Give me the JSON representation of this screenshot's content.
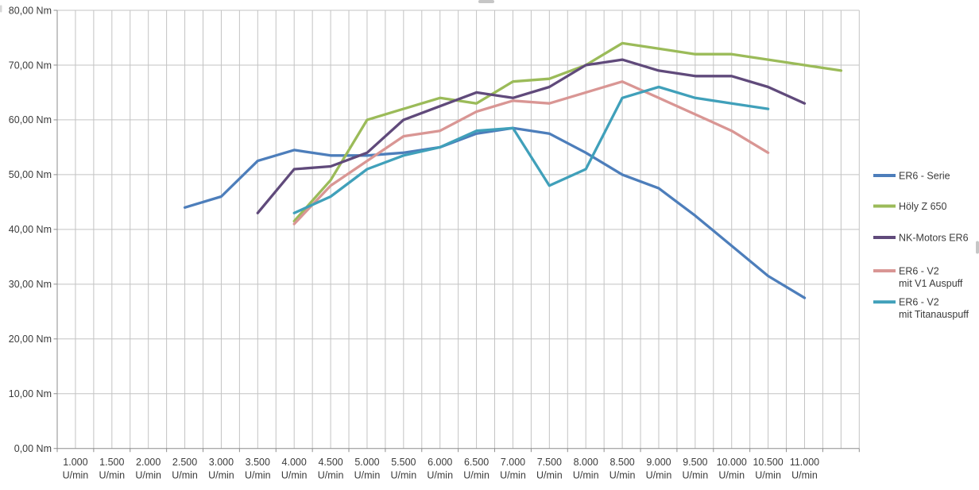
{
  "chart_data": {
    "type": "line",
    "title": "",
    "grid": true,
    "legend_position": "right",
    "x_axis": {
      "unit": "U/min",
      "min": 750,
      "max": 11750,
      "gridline_step": 250,
      "label_step": 500,
      "tick_values": [
        1000,
        1500,
        2000,
        2500,
        3000,
        3500,
        4000,
        4500,
        5000,
        5500,
        6000,
        6500,
        7000,
        7500,
        8000,
        8500,
        9000,
        9500,
        10000,
        10500,
        11000
      ],
      "tick_labels": [
        "1.000",
        "1.500",
        "2.000",
        "2.500",
        "3.000",
        "3.500",
        "4.000",
        "4.500",
        "5.000",
        "5.500",
        "6.000",
        "6.500",
        "7.000",
        "7.500",
        "8.000",
        "8.500",
        "9.000",
        "9.500",
        "10.000",
        "10.500",
        "11.000"
      ]
    },
    "y_axis": {
      "unit": "Nm",
      "min": 0,
      "max": 80,
      "gridline_step": 10,
      "tick_values": [
        0,
        10,
        20,
        30,
        40,
        50,
        60,
        70,
        80
      ],
      "tick_labels": [
        "0,00 Nm",
        "10,00 Nm",
        "20,00 Nm",
        "30,00 Nm",
        "40,00 Nm",
        "50,00 Nm",
        "60,00 Nm",
        "70,00 Nm",
        "80,00 Nm"
      ]
    },
    "series": [
      {
        "name": "ER6 - Serie",
        "legend_lines": [
          "ER6 - Serie"
        ],
        "color": "#4D7EBB",
        "points": [
          [
            2500,
            44
          ],
          [
            3000,
            46
          ],
          [
            3500,
            52.5
          ],
          [
            4000,
            54.5
          ],
          [
            4500,
            53.5
          ],
          [
            5000,
            53.5
          ],
          [
            5500,
            54
          ],
          [
            6000,
            55
          ],
          [
            6500,
            57.5
          ],
          [
            7000,
            58.5
          ],
          [
            7500,
            57.5
          ],
          [
            8000,
            54
          ],
          [
            8500,
            50
          ],
          [
            9000,
            47.5
          ],
          [
            9500,
            42.5
          ],
          [
            10000,
            37
          ],
          [
            10500,
            31.5
          ],
          [
            11000,
            27.5
          ]
        ]
      },
      {
        "name": "Höly Z 650",
        "legend_lines": [
          "Höly Z 650"
        ],
        "color": "#9BBB59",
        "points": [
          [
            4000,
            41.5
          ],
          [
            4500,
            49
          ],
          [
            5000,
            60
          ],
          [
            5500,
            62
          ],
          [
            6000,
            64
          ],
          [
            6500,
            63
          ],
          [
            7000,
            67
          ],
          [
            7500,
            67.5
          ],
          [
            8000,
            70
          ],
          [
            8500,
            74
          ],
          [
            9000,
            73
          ],
          [
            9500,
            72
          ],
          [
            10000,
            72
          ],
          [
            10500,
            71
          ],
          [
            11000,
            70
          ],
          [
            11500,
            69
          ]
        ]
      },
      {
        "name": "NK-Motors ER6",
        "legend_lines": [
          "NK-Motors ER6"
        ],
        "color": "#604A7B",
        "points": [
          [
            3500,
            43
          ],
          [
            4000,
            51
          ],
          [
            4500,
            51.5
          ],
          [
            5000,
            54
          ],
          [
            5500,
            60
          ],
          [
            6000,
            62.5
          ],
          [
            6500,
            65
          ],
          [
            7000,
            64
          ],
          [
            7500,
            66
          ],
          [
            8000,
            70
          ],
          [
            8500,
            71
          ],
          [
            9000,
            69
          ],
          [
            9500,
            68
          ],
          [
            10000,
            68
          ],
          [
            10500,
            66
          ],
          [
            11000,
            63
          ]
        ]
      },
      {
        "name": "ER6 - V2 mit V1 Auspuff",
        "legend_lines": [
          "ER6 - V2",
          "mit V1 Auspuff"
        ],
        "color": "#D99694",
        "points": [
          [
            4000,
            41
          ],
          [
            4500,
            48
          ],
          [
            5000,
            52.5
          ],
          [
            5500,
            57
          ],
          [
            6000,
            58
          ],
          [
            6500,
            61.5
          ],
          [
            7000,
            63.5
          ],
          [
            7500,
            63
          ],
          [
            8000,
            65
          ],
          [
            8500,
            67
          ],
          [
            9000,
            64
          ],
          [
            9500,
            61
          ],
          [
            10000,
            58
          ],
          [
            10500,
            54
          ]
        ]
      },
      {
        "name": "ER6 - V2 mit Titanauspuff",
        "legend_lines": [
          "ER6 - V2",
          "mit Titanauspuff"
        ],
        "color": "#40A0BA",
        "points": [
          [
            4000,
            43
          ],
          [
            4500,
            46
          ],
          [
            5000,
            51
          ],
          [
            5500,
            53.5
          ],
          [
            6000,
            55
          ],
          [
            6500,
            58
          ],
          [
            7000,
            58.5
          ],
          [
            7500,
            48
          ],
          [
            8000,
            51
          ],
          [
            8500,
            64
          ],
          [
            9000,
            66
          ],
          [
            9500,
            64
          ],
          [
            10000,
            63
          ],
          [
            10500,
            62
          ]
        ]
      }
    ]
  },
  "colors": {
    "background": "#FFFFFF",
    "gridline": "#C3C3C3",
    "axis": "#8E8E8E",
    "text": "#3B3B3B",
    "selection_handle": "#BCBCBC"
  },
  "artifacts": {
    "selection_handles": [
      "left-upper-edge",
      "top-center",
      "right-middle"
    ]
  }
}
